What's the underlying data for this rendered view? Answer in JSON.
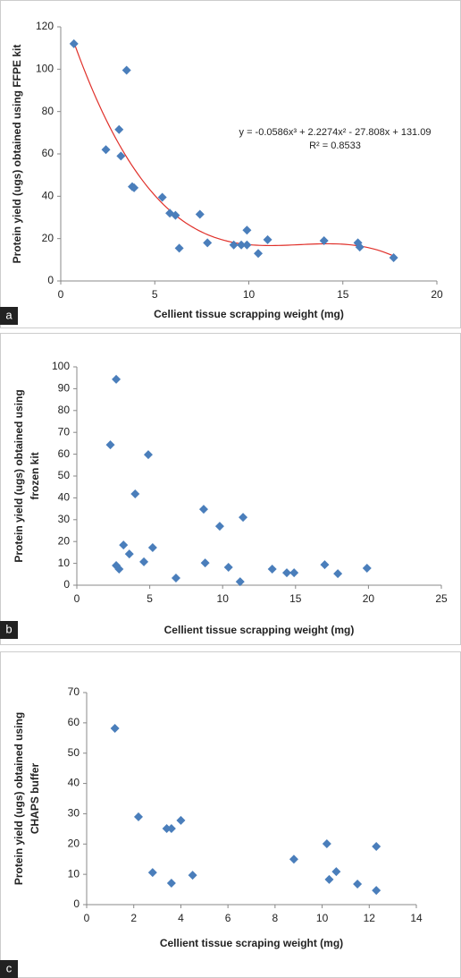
{
  "chart_data": [
    {
      "type": "scatter",
      "panel_label": "a",
      "ylabel": [
        "Protein yield (ugs) obtained using FFPE kit"
      ],
      "xlabel": "Cellient tissue scrapping weight (mg)",
      "x": [
        0.7,
        3.5,
        3.1,
        2.4,
        3.2,
        3.8,
        3.9,
        5.4,
        5.8,
        6.1,
        7.4,
        6.3,
        7.8,
        9.2,
        9.6,
        9.9,
        9.9,
        10.5,
        11.0,
        14.0,
        15.8,
        15.9,
        17.7
      ],
      "values": [
        112,
        99.5,
        71.5,
        62,
        59,
        44.5,
        44,
        39.5,
        32,
        31,
        31.5,
        15.5,
        18,
        17,
        17,
        17,
        24,
        13,
        19.5,
        19,
        18,
        16,
        11
      ],
      "color": "#4a7ebb",
      "xlim": [
        0,
        20
      ],
      "xticks": [
        0,
        5,
        10,
        15,
        20
      ],
      "ylim": [
        0,
        120
      ],
      "yticks": [
        0,
        20,
        40,
        60,
        80,
        100,
        120
      ],
      "trendline": {
        "coefficients": [
          -0.0586,
          2.2274,
          -27.808,
          131.09
        ],
        "color": "#e0302a",
        "equation": "y = -0.0586x³ + 2.2274x² - 27.808x + 131.09",
        "r2": "R² = 0.8533"
      }
    },
    {
      "type": "scatter",
      "panel_label": "b",
      "ylabel": [
        "Protein yield (ugs) obtained using",
        "frozen kit"
      ],
      "xlabel": "Cellient tissue scrapping weight (mg)",
      "x": [
        2.3,
        2.7,
        2.7,
        2.9,
        3.2,
        3.6,
        4.0,
        4.6,
        4.9,
        5.2,
        6.8,
        8.7,
        8.8,
        9.8,
        10.4,
        11.2,
        11.4,
        13.4,
        14.4,
        14.9,
        17.0,
        17.9,
        19.9
      ],
      "values": [
        64.3,
        94.3,
        9,
        7.4,
        18.4,
        14.3,
        41.8,
        10.7,
        59.8,
        17.2,
        3.3,
        34.8,
        10.2,
        27,
        8.2,
        1.6,
        31.1,
        7.4,
        5.7,
        5.7,
        9.4,
        5.3,
        7.8
      ],
      "color": "#4a7ebb",
      "xlim": [
        0,
        25
      ],
      "xticks": [
        0,
        5,
        10,
        15,
        20,
        25
      ],
      "ylim": [
        0,
        100
      ],
      "yticks": [
        0,
        10,
        20,
        30,
        40,
        50,
        60,
        70,
        80,
        90,
        100
      ]
    },
    {
      "type": "scatter",
      "panel_label": "c",
      "ylabel": [
        "Protein yield (ugs) obtained using",
        "CHAPS buffer"
      ],
      "xlabel": "Cellient tissue scraping weight (mg)",
      "x": [
        1.2,
        2.2,
        2.8,
        3.4,
        3.6,
        3.6,
        4.0,
        4.5,
        8.8,
        10.2,
        10.3,
        10.6,
        11.5,
        12.3,
        12.3
      ],
      "values": [
        58.2,
        29,
        10.6,
        25.1,
        25.1,
        7.1,
        27.8,
        9.7,
        15,
        20.1,
        8.3,
        10.9,
        6.8,
        19.2,
        4.7
      ],
      "color": "#4a7ebb",
      "xlim": [
        0,
        14
      ],
      "xticks": [
        0,
        2,
        4,
        6,
        8,
        10,
        12,
        14
      ],
      "ylim": [
        0,
        70
      ],
      "yticks": [
        0,
        10,
        20,
        30,
        40,
        50,
        60,
        70
      ]
    }
  ]
}
